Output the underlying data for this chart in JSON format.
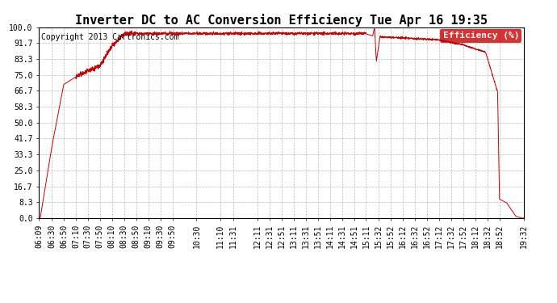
{
  "title": "Inverter DC to AC Conversion Efficiency Tue Apr 16 19:35",
  "copyright": "Copyright 2013 Cartronics.com",
  "legend_label": "Efficiency (%)",
  "legend_bg": "#cc0000",
  "legend_fg": "#ffffff",
  "line_color": "#cc0000",
  "bg_color": "#ffffff",
  "grid_color": "#aaaaaa",
  "yticks": [
    0.0,
    8.3,
    16.7,
    25.0,
    33.3,
    41.7,
    50.0,
    58.3,
    66.7,
    75.0,
    83.3,
    91.7,
    100.0
  ],
  "xtick_labels": [
    "06:09",
    "06:30",
    "06:50",
    "07:10",
    "07:30",
    "07:50",
    "08:10",
    "08:30",
    "08:50",
    "09:10",
    "09:30",
    "09:50",
    "10:30",
    "11:10",
    "11:31",
    "12:11",
    "12:31",
    "12:51",
    "13:11",
    "13:31",
    "13:51",
    "14:11",
    "14:31",
    "14:51",
    "15:11",
    "15:32",
    "15:52",
    "16:12",
    "16:32",
    "16:52",
    "17:12",
    "17:32",
    "17:52",
    "18:12",
    "18:32",
    "18:52",
    "19:32"
  ],
  "ylim": [
    0.0,
    100.0
  ],
  "title_fontsize": 11,
  "axis_fontsize": 7,
  "copyright_fontsize": 7,
  "legend_fontsize": 8
}
